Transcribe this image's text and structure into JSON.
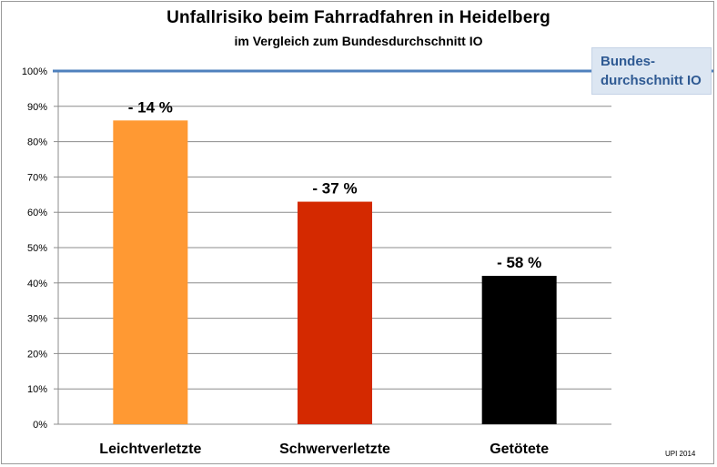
{
  "chart_data": {
    "type": "bar",
    "title": "Unfallrisiko beim Fahrradfahren in Heidelberg",
    "subtitle": "im Vergleich zum Bundesdurchschnitt IO",
    "categories": [
      "Leichtverletzte",
      "Schwerverletzte",
      "Getötete"
    ],
    "values": [
      86,
      63,
      42
    ],
    "value_unit": "%",
    "data_labels": [
      "- 14 %",
      "- 37 %",
      "- 58 %"
    ],
    "colors": [
      "#ff9933",
      "#d42900",
      "#000000"
    ],
    "ylim": [
      0,
      100
    ],
    "yticks": [
      "0%",
      "10%",
      "20%",
      "30%",
      "40%",
      "50%",
      "60%",
      "70%",
      "80%",
      "90%",
      "100%"
    ],
    "grid": true,
    "reference_line": {
      "value": 100,
      "label_line1": "Bundes-",
      "label_line2": "durchschnitt IO",
      "color": "#4f81bd"
    },
    "credit": "UPI 2014"
  }
}
